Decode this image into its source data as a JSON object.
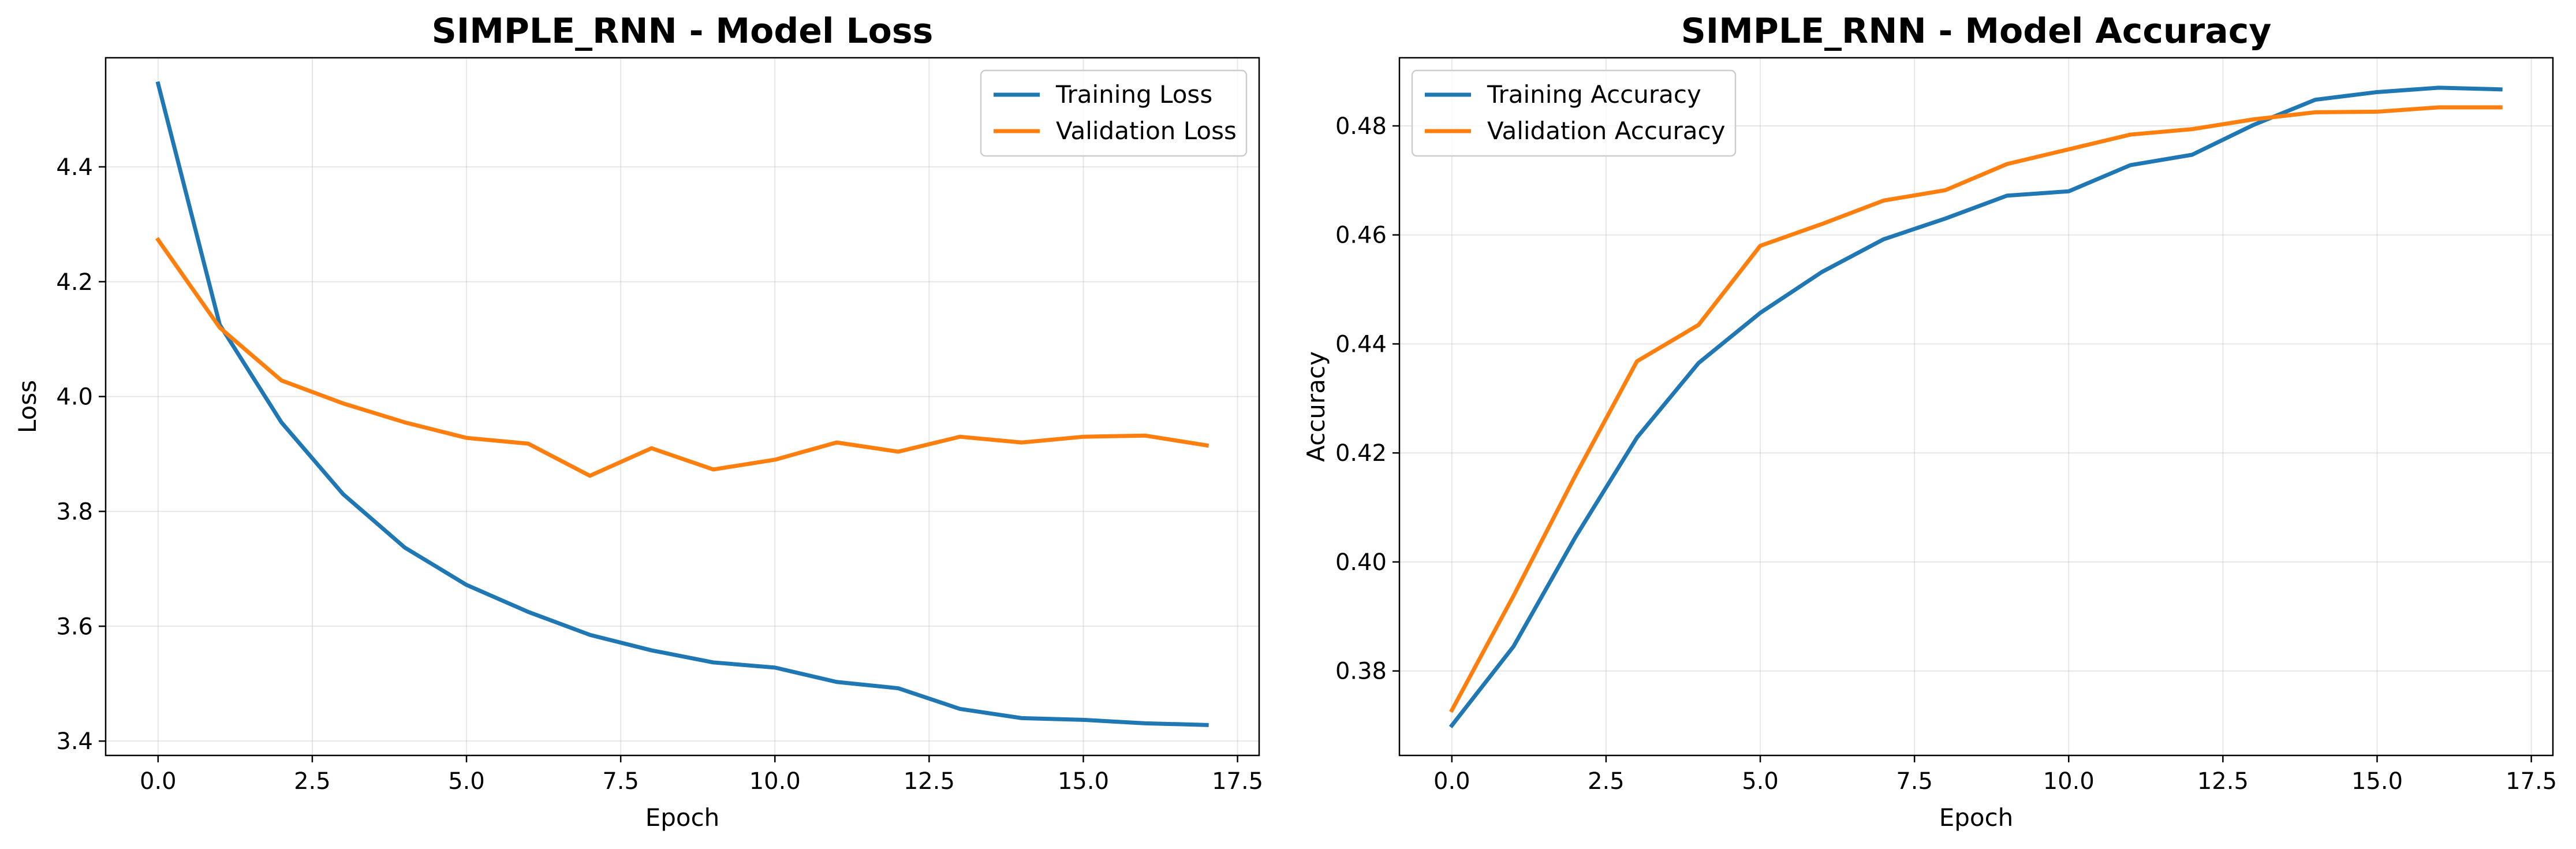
{
  "chart_data": [
    {
      "type": "line",
      "title": "SIMPLE_RNN - Model Loss",
      "xlabel": "Epoch",
      "ylabel": "Loss",
      "xlim": [
        -0.85,
        17.85
      ],
      "ylim": [
        3.375,
        4.59
      ],
      "xticks": [
        0.0,
        2.5,
        5.0,
        7.5,
        10.0,
        12.5,
        15.0,
        17.5
      ],
      "xtick_labels": [
        "0.0",
        "2.5",
        "5.0",
        "7.5",
        "10.0",
        "12.5",
        "15.0",
        "17.5"
      ],
      "yticks": [
        3.4,
        3.6,
        3.8,
        4.0,
        4.2,
        4.4
      ],
      "ytick_labels": [
        "3.4",
        "3.6",
        "3.8",
        "4.0",
        "4.2",
        "4.4"
      ],
      "grid": true,
      "legend_position": "upper right",
      "x": [
        0,
        1,
        2,
        3,
        4,
        5,
        6,
        7,
        8,
        9,
        10,
        11,
        12,
        13,
        14,
        15,
        16,
        17
      ],
      "series": [
        {
          "name": "Training Loss",
          "color": "#1f77b4",
          "values": [
            4.545,
            4.125,
            3.955,
            3.83,
            3.737,
            3.672,
            3.625,
            3.585,
            3.558,
            3.537,
            3.528,
            3.503,
            3.492,
            3.456,
            3.44,
            3.437,
            3.431,
            3.428
          ]
        },
        {
          "name": "Validation Loss",
          "color": "#ff7f0e",
          "values": [
            4.273,
            4.12,
            4.028,
            3.988,
            3.955,
            3.928,
            3.918,
            3.862,
            3.91,
            3.873,
            3.89,
            3.92,
            3.904,
            3.93,
            3.92,
            3.93,
            3.932,
            3.915
          ]
        }
      ]
    },
    {
      "type": "line",
      "title": "SIMPLE_RNN - Model Accuracy",
      "xlabel": "Epoch",
      "ylabel": "Accuracy",
      "xlim": [
        -0.85,
        17.85
      ],
      "ylim": [
        0.3645,
        0.4925
      ],
      "xticks": [
        0.0,
        2.5,
        5.0,
        7.5,
        10.0,
        12.5,
        15.0,
        17.5
      ],
      "xtick_labels": [
        "0.0",
        "2.5",
        "5.0",
        "7.5",
        "10.0",
        "12.5",
        "15.0",
        "17.5"
      ],
      "yticks": [
        0.38,
        0.4,
        0.42,
        0.44,
        0.46,
        0.48
      ],
      "ytick_labels": [
        "0.38",
        "0.40",
        "0.42",
        "0.44",
        "0.46",
        "0.48"
      ],
      "grid": true,
      "legend_position": "upper left",
      "x": [
        0,
        1,
        2,
        3,
        4,
        5,
        6,
        7,
        8,
        9,
        10,
        11,
        12,
        13,
        14,
        15,
        16,
        17
      ],
      "series": [
        {
          "name": "Training Accuracy",
          "color": "#1f77b4",
          "values": [
            0.37,
            0.3845,
            0.4045,
            0.4228,
            0.4365,
            0.4457,
            0.4532,
            0.4592,
            0.463,
            0.4672,
            0.468,
            0.4728,
            0.4747,
            0.4802,
            0.4848,
            0.4862,
            0.487,
            0.4867
          ]
        },
        {
          "name": "Validation Accuracy",
          "color": "#ff7f0e",
          "values": [
            0.3728,
            0.3938,
            0.4158,
            0.4368,
            0.4435,
            0.458,
            0.462,
            0.4663,
            0.4682,
            0.473,
            0.4757,
            0.4784,
            0.4794,
            0.4812,
            0.4825,
            0.4826,
            0.4834,
            0.4834
          ]
        }
      ]
    }
  ]
}
